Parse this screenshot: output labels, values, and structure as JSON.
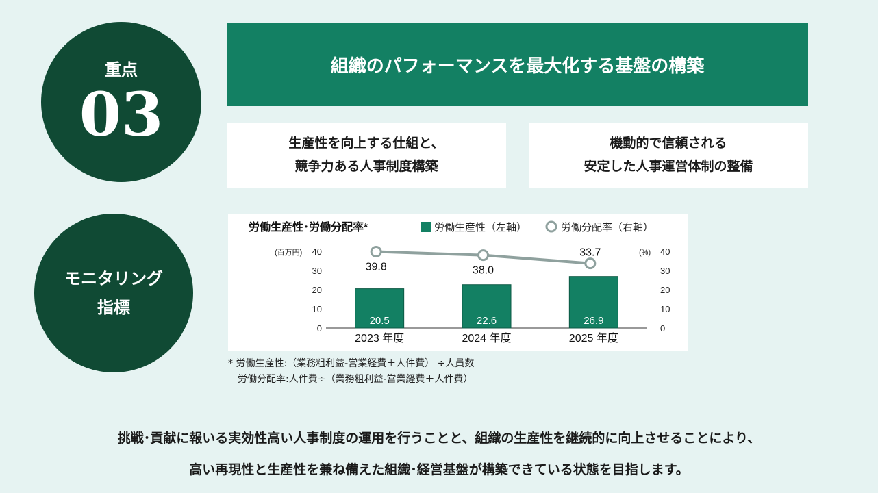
{
  "focus": {
    "label": "重点",
    "number": "03"
  },
  "monitoring": {
    "line1": "モニタリング",
    "line2": "指標"
  },
  "banner": {
    "title": "組織のパフォーマンスを最大化する基盤の構築"
  },
  "boxes": [
    {
      "line1": "生産性を向上する仕組と、",
      "line2": "競争力ある人事制度構築"
    },
    {
      "line1": "機動的で信頼される",
      "line2": "安定した人事運営体制の整備"
    }
  ],
  "chart_data": {
    "type": "bar+line",
    "title": "労働生産性･労働分配率*",
    "categories": [
      "2023 年度",
      "2024 年度",
      "2025 年度"
    ],
    "series": [
      {
        "name": "労働生産性（左軸）",
        "type": "bar",
        "axis": "left",
        "values": [
          20.5,
          22.6,
          26.9
        ],
        "labels": [
          "20.5",
          "22.6",
          "26.9"
        ],
        "color": "#138063"
      },
      {
        "name": "労働分配率（右軸）",
        "type": "line",
        "axis": "right",
        "values": [
          39.8,
          38.0,
          33.7
        ],
        "labels": [
          "39.8",
          "38.0",
          "33.7"
        ],
        "color": "#8fa19e"
      }
    ],
    "y_left": {
      "unit": "(百万円)",
      "ylim": [
        0,
        40
      ],
      "ticks": [
        "40",
        "30",
        "20",
        "10",
        "0"
      ]
    },
    "y_right": {
      "unit": "(%)",
      "ylim": [
        0,
        40
      ],
      "ticks": [
        "40",
        "30",
        "20",
        "10",
        "0"
      ]
    },
    "grid": false,
    "legend": "top"
  },
  "notes": {
    "line1": "* 労働生産性:（業務粗利益-営業経費＋人件費） ÷人員数",
    "line2": "労働分配率:人件費÷（業務粗利益-営業経費＋人件費）"
  },
  "bottom": {
    "line1": "挑戦･貢献に報いる実効性高い人事制度の運用を行うことと、組織の生産性を継続的に向上させることにより、",
    "line2": "高い再現性と生産性を兼ね備えた組織･経営基盤が構築できている状態を目指します。"
  }
}
